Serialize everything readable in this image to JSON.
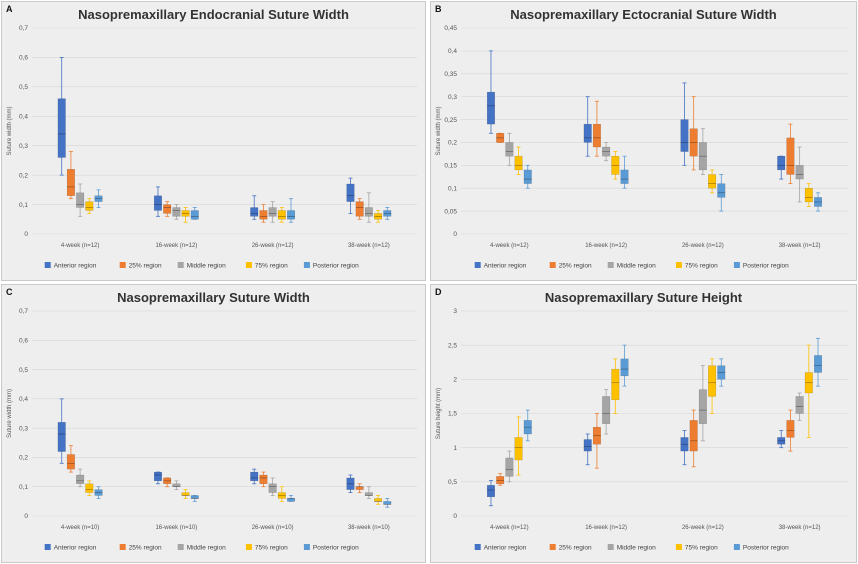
{
  "colors": {
    "Anterior region": "#4472c4",
    "25% region": "#ed7d31",
    "Middle region": "#a5a5a5",
    "75% region": "#ffc000",
    "Posterior region": "#5b9bd5"
  },
  "chart_data": [
    {
      "type": "box",
      "panel_label": "A",
      "title": "Nasopremaxillary Endocranial Suture Width",
      "ylabel": "Suture width (mm)",
      "ylim": [
        0,
        0.7
      ],
      "yticks": [
        "0",
        "0,1",
        "0,2",
        "0,3",
        "0,4",
        "0,5",
        "0,6",
        "0,7"
      ],
      "categories": [
        "4-week (n=12)",
        "16-week (n=12)",
        "26-week (n=12)",
        "38-week (n=12)"
      ],
      "legend": [
        "Anterior region",
        "25% region",
        "Middle region",
        "75% region",
        "Posterior region"
      ],
      "series": [
        {
          "name": "Anterior region",
          "boxes": [
            [
              0.2,
              0.26,
              0.34,
              0.46,
              0.6
            ],
            [
              0.06,
              0.08,
              0.1,
              0.13,
              0.16
            ],
            [
              0.05,
              0.06,
              0.07,
              0.09,
              0.13
            ],
            [
              0.07,
              0.11,
              0.13,
              0.17,
              0.19
            ]
          ]
        },
        {
          "name": "25% region",
          "boxes": [
            [
              0.12,
              0.13,
              0.16,
              0.22,
              0.28
            ],
            [
              0.06,
              0.07,
              0.09,
              0.1,
              0.11
            ],
            [
              0.04,
              0.05,
              0.06,
              0.08,
              0.1
            ],
            [
              0.05,
              0.06,
              0.09,
              0.11,
              0.12
            ]
          ]
        },
        {
          "name": "Middle region",
          "boxes": [
            [
              0.06,
              0.09,
              0.1,
              0.14,
              0.17
            ],
            [
              0.05,
              0.06,
              0.08,
              0.09,
              0.1
            ],
            [
              0.04,
              0.06,
              0.07,
              0.09,
              0.11
            ],
            [
              0.04,
              0.06,
              0.07,
              0.09,
              0.14
            ]
          ]
        },
        {
          "name": "75% region",
          "boxes": [
            [
              0.07,
              0.08,
              0.09,
              0.11,
              0.12
            ],
            [
              0.04,
              0.06,
              0.07,
              0.08,
              0.09
            ],
            [
              0.04,
              0.05,
              0.06,
              0.08,
              0.09
            ],
            [
              0.04,
              0.05,
              0.06,
              0.07,
              0.08
            ]
          ]
        },
        {
          "name": "Posterior region",
          "boxes": [
            [
              0.09,
              0.11,
              0.12,
              0.13,
              0.15
            ],
            [
              0.05,
              0.05,
              0.06,
              0.08,
              0.09
            ],
            [
              0.04,
              0.05,
              0.06,
              0.08,
              0.12
            ],
            [
              0.05,
              0.06,
              0.07,
              0.08,
              0.09
            ]
          ]
        }
      ]
    },
    {
      "type": "box",
      "panel_label": "B",
      "title": "Nasopremaxillary Ectocranial Suture Width",
      "ylabel": "Suture width (mm)",
      "ylim": [
        0,
        0.45
      ],
      "yticks": [
        "0",
        "0,05",
        "0,1",
        "0,15",
        "0,2",
        "0,25",
        "0,3",
        "0,35",
        "0,4",
        "0,45"
      ],
      "categories": [
        "4-week (n=12)",
        "16-week (n=12)",
        "26-week (n=12)",
        "38-week (n=12)"
      ],
      "legend": [
        "Anterior region",
        "25% region",
        "Middle region",
        "75% region",
        "Posterior region"
      ],
      "series": [
        {
          "name": "Anterior region",
          "boxes": [
            [
              0.22,
              0.24,
              0.28,
              0.31,
              0.4
            ],
            [
              0.17,
              0.2,
              0.21,
              0.24,
              0.3
            ],
            [
              0.15,
              0.18,
              0.2,
              0.25,
              0.33
            ],
            [
              0.12,
              0.14,
              0.15,
              0.17,
              0.17
            ]
          ]
        },
        {
          "name": "25% region",
          "boxes": [
            [
              0.2,
              0.2,
              0.21,
              0.22,
              0.22
            ],
            [
              0.17,
              0.19,
              0.21,
              0.24,
              0.29
            ],
            [
              0.14,
              0.17,
              0.2,
              0.23,
              0.3
            ],
            [
              0.11,
              0.13,
              0.15,
              0.21,
              0.24
            ]
          ]
        },
        {
          "name": "Middle region",
          "boxes": [
            [
              0.15,
              0.17,
              0.18,
              0.2,
              0.22
            ],
            [
              0.16,
              0.17,
              0.18,
              0.19,
              0.2
            ],
            [
              0.13,
              0.14,
              0.17,
              0.2,
              0.23
            ],
            [
              0.07,
              0.12,
              0.13,
              0.15,
              0.19
            ]
          ]
        },
        {
          "name": "75% region",
          "boxes": [
            [
              0.13,
              0.14,
              0.15,
              0.17,
              0.19
            ],
            [
              0.12,
              0.13,
              0.15,
              0.17,
              0.18
            ],
            [
              0.09,
              0.1,
              0.11,
              0.13,
              0.14
            ],
            [
              0.06,
              0.07,
              0.08,
              0.1,
              0.11
            ]
          ]
        },
        {
          "name": "Posterior region",
          "boxes": [
            [
              0.1,
              0.11,
              0.12,
              0.14,
              0.15
            ],
            [
              0.1,
              0.11,
              0.12,
              0.14,
              0.17
            ],
            [
              0.05,
              0.08,
              0.09,
              0.11,
              0.13
            ],
            [
              0.05,
              0.06,
              0.07,
              0.08,
              0.09
            ]
          ]
        }
      ]
    },
    {
      "type": "box",
      "panel_label": "C",
      "title": "Nasopremaxillary Suture Width",
      "ylabel": "Suture width (mm)",
      "ylim": [
        0,
        0.7
      ],
      "yticks": [
        "0",
        "0,1",
        "0,2",
        "0,3",
        "0,4",
        "0,5",
        "0,6",
        "0,7"
      ],
      "categories": [
        "4-week (n=10)",
        "16-week (n=10)",
        "26-week (n=10)",
        "38-week (n=10)"
      ],
      "legend": [
        "Anterior region",
        "25% region",
        "Middle region",
        "75% region",
        "Posterior region"
      ],
      "series": [
        {
          "name": "Anterior region",
          "boxes": [
            [
              0.18,
              0.22,
              0.28,
              0.32,
              0.4
            ],
            [
              0.11,
              0.12,
              0.14,
              0.15,
              0.15
            ],
            [
              0.11,
              0.12,
              0.13,
              0.15,
              0.16
            ],
            [
              0.08,
              0.09,
              0.11,
              0.13,
              0.14
            ]
          ]
        },
        {
          "name": "25% region",
          "boxes": [
            [
              0.15,
              0.16,
              0.18,
              0.21,
              0.24
            ],
            [
              0.1,
              0.11,
              0.12,
              0.13,
              0.13
            ],
            [
              0.1,
              0.11,
              0.13,
              0.14,
              0.15
            ],
            [
              0.08,
              0.09,
              0.1,
              0.1,
              0.11
            ]
          ]
        },
        {
          "name": "Middle region",
          "boxes": [
            [
              0.1,
              0.11,
              0.12,
              0.14,
              0.16
            ],
            [
              0.09,
              0.1,
              0.1,
              0.11,
              0.12
            ],
            [
              0.07,
              0.08,
              0.1,
              0.11,
              0.13
            ],
            [
              0.06,
              0.07,
              0.07,
              0.08,
              0.1
            ]
          ]
        },
        {
          "name": "75% region",
          "boxes": [
            [
              0.07,
              0.08,
              0.09,
              0.11,
              0.12
            ],
            [
              0.06,
              0.07,
              0.07,
              0.08,
              0.09
            ],
            [
              0.05,
              0.06,
              0.07,
              0.08,
              0.1
            ],
            [
              0.04,
              0.05,
              0.05,
              0.06,
              0.07
            ]
          ]
        },
        {
          "name": "Posterior region",
          "boxes": [
            [
              0.06,
              0.07,
              0.08,
              0.09,
              0.1
            ],
            [
              0.05,
              0.06,
              0.06,
              0.07,
              0.07
            ],
            [
              0.05,
              0.05,
              0.06,
              0.06,
              0.07
            ],
            [
              0.03,
              0.04,
              0.04,
              0.05,
              0.06
            ]
          ]
        }
      ]
    },
    {
      "type": "box",
      "panel_label": "D",
      "title": "Nasopremaxillary Suture Height",
      "ylabel": "Suture height (mm)",
      "ylim": [
        0,
        3
      ],
      "yticks": [
        "0",
        "0,5",
        "1",
        "1,5",
        "2",
        "2,5",
        "3"
      ],
      "categories": [
        "4-week (n=12)",
        "16-week (n=12)",
        "26-week (n=12)",
        "38-week (n=12)"
      ],
      "legend": [
        "Anterior region",
        "25% region",
        "Middle region",
        "75% region",
        "Posterior region"
      ],
      "series": [
        {
          "name": "Anterior region",
          "boxes": [
            [
              0.15,
              0.28,
              0.38,
              0.45,
              0.52
            ],
            [
              0.75,
              0.95,
              1.02,
              1.12,
              1.2
            ],
            [
              0.75,
              0.95,
              1.05,
              1.15,
              1.25
            ],
            [
              1.0,
              1.05,
              1.1,
              1.15,
              1.25
            ]
          ]
        },
        {
          "name": "25% region",
          "boxes": [
            [
              0.45,
              0.47,
              0.52,
              0.58,
              0.62
            ],
            [
              0.7,
              1.05,
              1.18,
              1.3,
              1.5
            ],
            [
              0.72,
              0.95,
              1.1,
              1.4,
              1.55
            ],
            [
              0.95,
              1.15,
              1.25,
              1.4,
              1.55
            ]
          ]
        },
        {
          "name": "Middle region",
          "boxes": [
            [
              0.5,
              0.58,
              0.68,
              0.85,
              0.95
            ],
            [
              1.2,
              1.35,
              1.5,
              1.75,
              1.85
            ],
            [
              1.1,
              1.35,
              1.55,
              1.85,
              2.2
            ],
            [
              1.4,
              1.5,
              1.6,
              1.75,
              1.8
            ]
          ]
        },
        {
          "name": "75% region",
          "boxes": [
            [
              0.6,
              0.82,
              1.0,
              1.15,
              1.45
            ],
            [
              1.5,
              1.7,
              1.95,
              2.15,
              2.3
            ],
            [
              1.5,
              1.75,
              1.95,
              2.2,
              2.3
            ],
            [
              1.15,
              1.8,
              1.95,
              2.1,
              2.5
            ]
          ]
        },
        {
          "name": "Posterior region",
          "boxes": [
            [
              1.1,
              1.2,
              1.3,
              1.4,
              1.55
            ],
            [
              1.9,
              2.05,
              2.15,
              2.3,
              2.5
            ],
            [
              1.9,
              2.0,
              2.1,
              2.2,
              2.3
            ],
            [
              1.9,
              2.1,
              2.2,
              2.35,
              2.6
            ]
          ]
        }
      ]
    }
  ]
}
